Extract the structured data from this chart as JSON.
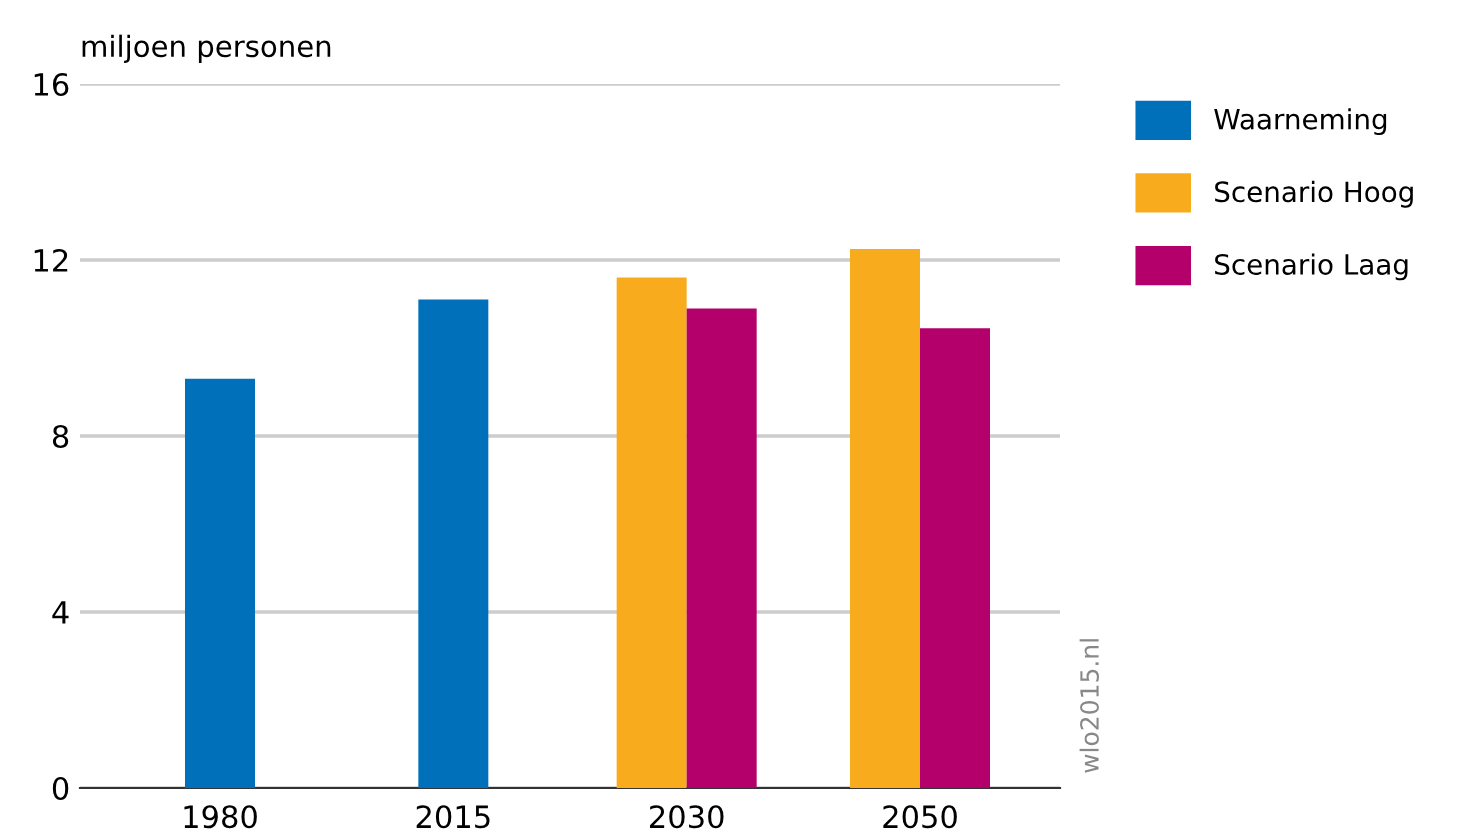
{
  "chart_data": {
    "type": "bar",
    "ylabel": "miljoen personen",
    "categories": [
      "1980",
      "2015",
      "2030",
      "2050"
    ],
    "series": [
      {
        "name": "Waarneming",
        "color": "#0070ba",
        "values": [
          9.3,
          11.1,
          null,
          null
        ]
      },
      {
        "name": "Scenario Hoog",
        "color": "#f9ab1e",
        "values": [
          null,
          null,
          11.6,
          12.25
        ]
      },
      {
        "name": "Scenario Laag",
        "color": "#b4006a",
        "values": [
          null,
          null,
          10.9,
          10.45
        ]
      }
    ],
    "ylim": [
      0,
      16
    ],
    "yticks": [
      0,
      4,
      8,
      12,
      16
    ],
    "grid": "y",
    "legend": "top right",
    "annotations": [
      "wlo2015.nl"
    ]
  }
}
